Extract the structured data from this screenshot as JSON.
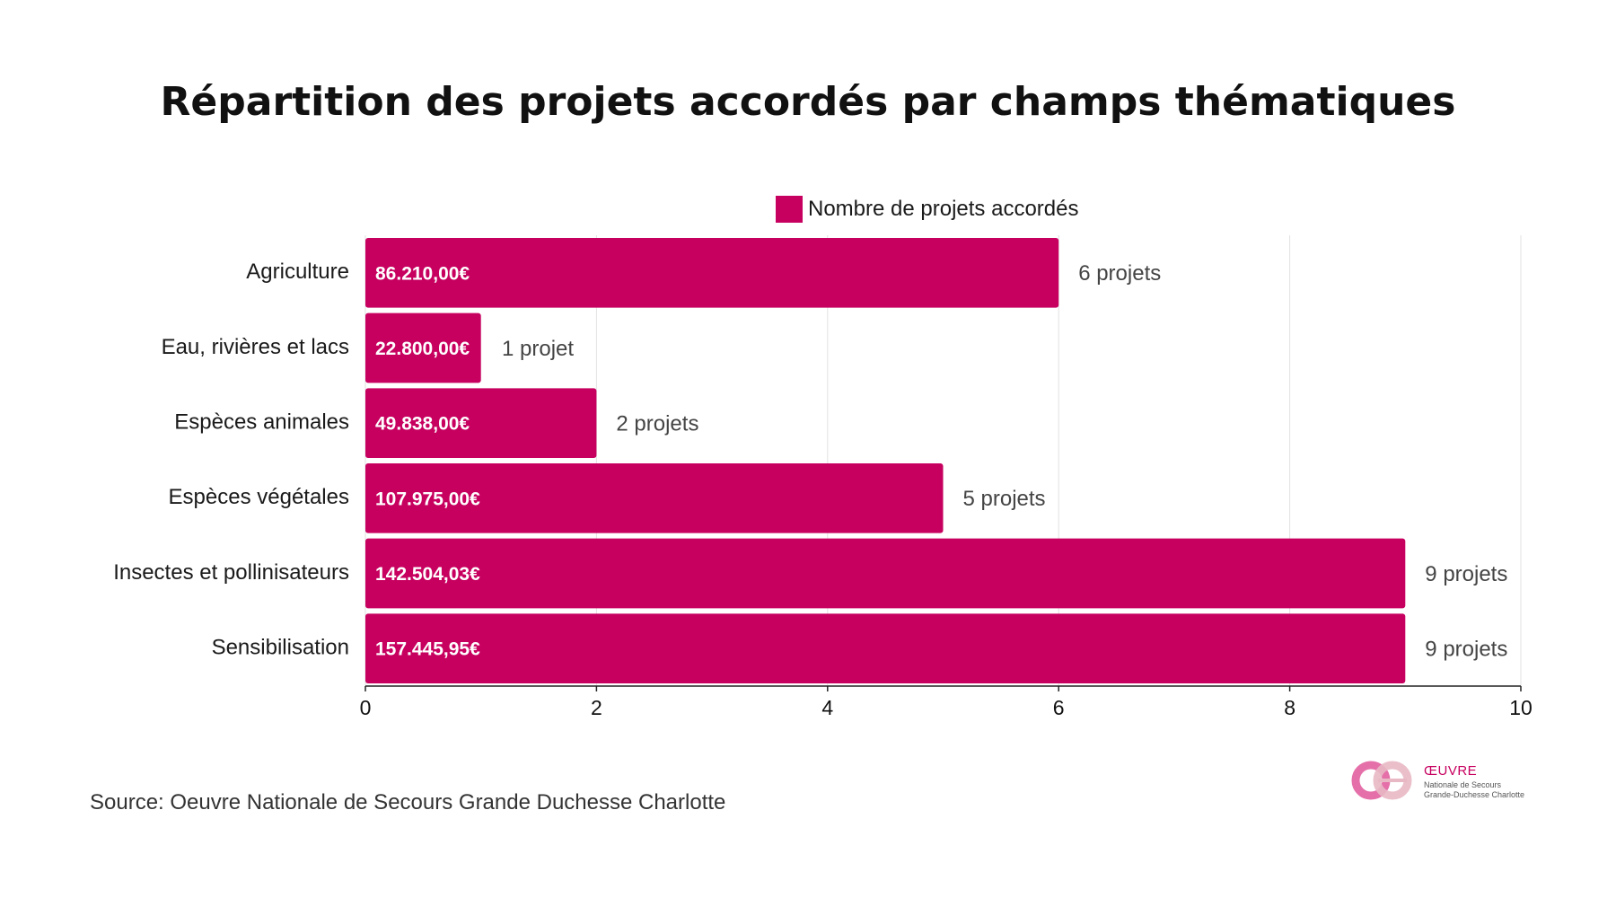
{
  "chart_data": {
    "type": "bar",
    "orientation": "horizontal",
    "title": "Répartition des projets accordés par champs thématiques",
    "categories": [
      "Agriculture",
      "Eau, rivières et lacs",
      "Espèces animales",
      "Espèces végétales",
      "Insectes et pollinisateurs",
      "Sensibilisation"
    ],
    "series": [
      {
        "name": "Nombre de projets accordés",
        "values": [
          6,
          1,
          2,
          5,
          9,
          9
        ]
      }
    ],
    "bar_labels": [
      "86.210,00€",
      "22.800,00€",
      "49.838,00€",
      "107.975,00€",
      "142.504,03€",
      "157.445,95€"
    ],
    "end_labels": [
      "6 projets",
      "1 projet",
      "2 projets",
      "5 projets",
      "9 projets",
      "9 projets"
    ],
    "xlim": [
      0,
      10
    ],
    "xticks": [
      "0",
      "2",
      "4",
      "6",
      "8",
      "10"
    ],
    "xlabel": "",
    "ylabel": "",
    "grid": true,
    "legend_position": "top-center",
    "color": "#c7005f"
  },
  "source": "Source: Oeuvre Nationale de Secours Grande Duchesse Charlotte",
  "logo": {
    "brand": "ŒUVRE",
    "line1": "Nationale de Secours",
    "line2": "Grande-Duchesse Charlotte"
  }
}
